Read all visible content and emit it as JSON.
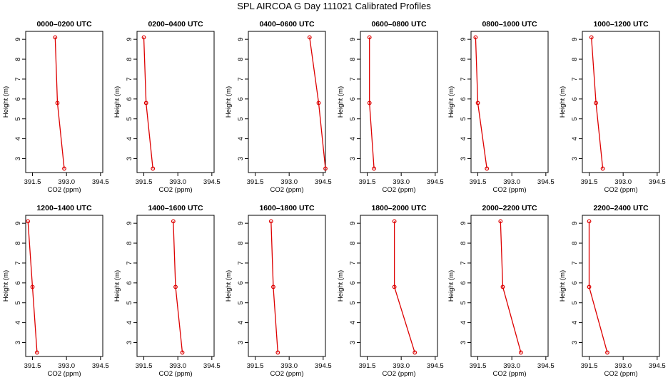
{
  "title": "SPL AIRCOA G  Day 111021  Calibrated Profiles",
  "colors": {
    "series": "#dd0000",
    "frame": "#000000",
    "background": "#ffffff"
  },
  "chart_data": [
    {
      "type": "line",
      "title": "0000–0200 UTC",
      "xlabel": "CO2 (ppm)",
      "ylabel": "Height (m)",
      "xlim": [
        391.2,
        394.6
      ],
      "ylim": [
        2.3,
        9.4
      ],
      "xticks": [
        "391.5",
        "393.0",
        "394.5"
      ],
      "yticks": [
        "3",
        "4",
        "5",
        "6",
        "7",
        "8",
        "9"
      ],
      "grid": false,
      "series": [
        {
          "x": [
            392.5,
            392.6,
            392.9
          ],
          "y": [
            9.1,
            5.8,
            2.5
          ]
        }
      ]
    },
    {
      "type": "line",
      "title": "0200–0400 UTC",
      "xlabel": "CO2 (ppm)",
      "ylabel": "Height (m)",
      "xlim": [
        391.2,
        394.6
      ],
      "ylim": [
        2.3,
        9.4
      ],
      "xticks": [
        "391.5",
        "393.0",
        "394.5"
      ],
      "yticks": [
        "3",
        "4",
        "5",
        "6",
        "7",
        "8",
        "9"
      ],
      "grid": false,
      "series": [
        {
          "x": [
            391.5,
            391.6,
            391.9
          ],
          "y": [
            9.1,
            5.8,
            2.5
          ]
        }
      ]
    },
    {
      "type": "line",
      "title": "0400–0600 UTC",
      "xlabel": "CO2 (ppm)",
      "ylabel": "Height (m)",
      "xlim": [
        391.2,
        394.6
      ],
      "ylim": [
        2.3,
        9.4
      ],
      "xticks": [
        "391.5",
        "393.0",
        "394.5"
      ],
      "yticks": [
        "3",
        "4",
        "5",
        "6",
        "7",
        "8",
        "9"
      ],
      "grid": false,
      "series": [
        {
          "x": [
            393.9,
            394.3,
            394.6
          ],
          "y": [
            9.1,
            5.8,
            2.5
          ]
        }
      ]
    },
    {
      "type": "line",
      "title": "0600–0800 UTC",
      "xlabel": "CO2 (ppm)",
      "ylabel": "Height (m)",
      "xlim": [
        391.2,
        394.6
      ],
      "ylim": [
        2.3,
        9.4
      ],
      "xticks": [
        "391.5",
        "393.0",
        "394.5"
      ],
      "yticks": [
        "3",
        "4",
        "5",
        "6",
        "7",
        "8",
        "9"
      ],
      "grid": false,
      "series": [
        {
          "x": [
            391.6,
            391.6,
            391.8
          ],
          "y": [
            9.1,
            5.8,
            2.5
          ]
        }
      ]
    },
    {
      "type": "line",
      "title": "0800–1000 UTC",
      "xlabel": "CO2 (ppm)",
      "ylabel": "Height (m)",
      "xlim": [
        391.2,
        394.6
      ],
      "ylim": [
        2.3,
        9.4
      ],
      "xticks": [
        "391.5",
        "393.0",
        "394.5"
      ],
      "yticks": [
        "3",
        "4",
        "5",
        "6",
        "7",
        "8",
        "9"
      ],
      "grid": false,
      "series": [
        {
          "x": [
            391.4,
            391.5,
            391.9
          ],
          "y": [
            9.1,
            5.8,
            2.5
          ]
        }
      ]
    },
    {
      "type": "line",
      "title": "1000–1200 UTC",
      "xlabel": "CO2 (ppm)",
      "ylabel": "Height (m)",
      "xlim": [
        391.2,
        394.6
      ],
      "ylim": [
        2.3,
        9.4
      ],
      "xticks": [
        "391.5",
        "393.0",
        "394.5"
      ],
      "yticks": [
        "3",
        "4",
        "5",
        "6",
        "7",
        "8",
        "9"
      ],
      "grid": false,
      "series": [
        {
          "x": [
            391.6,
            391.8,
            392.1
          ],
          "y": [
            9.1,
            5.8,
            2.5
          ]
        }
      ]
    },
    {
      "type": "line",
      "title": "1200–1400 UTC",
      "xlabel": "CO2 (ppm)",
      "ylabel": "Height (m)",
      "xlim": [
        391.2,
        394.6
      ],
      "ylim": [
        2.3,
        9.4
      ],
      "xticks": [
        "391.5",
        "393.0",
        "394.5"
      ],
      "yticks": [
        "3",
        "4",
        "5",
        "6",
        "7",
        "8",
        "9"
      ],
      "grid": false,
      "series": [
        {
          "x": [
            391.3,
            391.5,
            391.7
          ],
          "y": [
            9.1,
            5.8,
            2.5
          ]
        }
      ]
    },
    {
      "type": "line",
      "title": "1400–1600 UTC",
      "xlabel": "CO2 (ppm)",
      "ylabel": "Height (m)",
      "xlim": [
        391.2,
        394.6
      ],
      "ylim": [
        2.3,
        9.4
      ],
      "xticks": [
        "391.5",
        "393.0",
        "394.5"
      ],
      "yticks": [
        "3",
        "4",
        "5",
        "6",
        "7",
        "8",
        "9"
      ],
      "grid": false,
      "series": [
        {
          "x": [
            392.8,
            392.9,
            393.2
          ],
          "y": [
            9.1,
            5.8,
            2.5
          ]
        }
      ]
    },
    {
      "type": "line",
      "title": "1600–1800 UTC",
      "xlabel": "CO2 (ppm)",
      "ylabel": "Height (m)",
      "xlim": [
        391.2,
        394.6
      ],
      "ylim": [
        2.3,
        9.4
      ],
      "xticks": [
        "391.5",
        "393.0",
        "394.5"
      ],
      "yticks": [
        "3",
        "4",
        "5",
        "6",
        "7",
        "8",
        "9"
      ],
      "grid": false,
      "series": [
        {
          "x": [
            392.2,
            392.3,
            392.5
          ],
          "y": [
            9.1,
            5.8,
            2.5
          ]
        }
      ]
    },
    {
      "type": "line",
      "title": "1800–2000 UTC",
      "xlabel": "CO2 (ppm)",
      "ylabel": "Height (m)",
      "xlim": [
        391.2,
        394.6
      ],
      "ylim": [
        2.3,
        9.4
      ],
      "xticks": [
        "391.5",
        "393.0",
        "394.5"
      ],
      "yticks": [
        "3",
        "4",
        "5",
        "6",
        "7",
        "8",
        "9"
      ],
      "grid": false,
      "series": [
        {
          "x": [
            392.7,
            392.7,
            393.6
          ],
          "y": [
            9.1,
            5.8,
            2.5
          ]
        }
      ]
    },
    {
      "type": "line",
      "title": "2000–2200 UTC",
      "xlabel": "CO2 (ppm)",
      "ylabel": "Height (m)",
      "xlim": [
        391.2,
        394.6
      ],
      "ylim": [
        2.3,
        9.4
      ],
      "xticks": [
        "391.5",
        "393.0",
        "394.5"
      ],
      "yticks": [
        "3",
        "4",
        "5",
        "6",
        "7",
        "8",
        "9"
      ],
      "grid": false,
      "series": [
        {
          "x": [
            392.5,
            392.6,
            393.4
          ],
          "y": [
            9.1,
            5.8,
            2.5
          ]
        }
      ]
    },
    {
      "type": "line",
      "title": "2200–2400 UTC",
      "xlabel": "CO2 (ppm)",
      "ylabel": "Height (m)",
      "xlim": [
        391.2,
        394.6
      ],
      "ylim": [
        2.3,
        9.4
      ],
      "xticks": [
        "391.5",
        "393.0",
        "394.5"
      ],
      "yticks": [
        "3",
        "4",
        "5",
        "6",
        "7",
        "8",
        "9"
      ],
      "grid": false,
      "series": [
        {
          "x": [
            391.5,
            391.5,
            392.3
          ],
          "y": [
            9.1,
            5.8,
            2.5
          ]
        }
      ]
    }
  ]
}
